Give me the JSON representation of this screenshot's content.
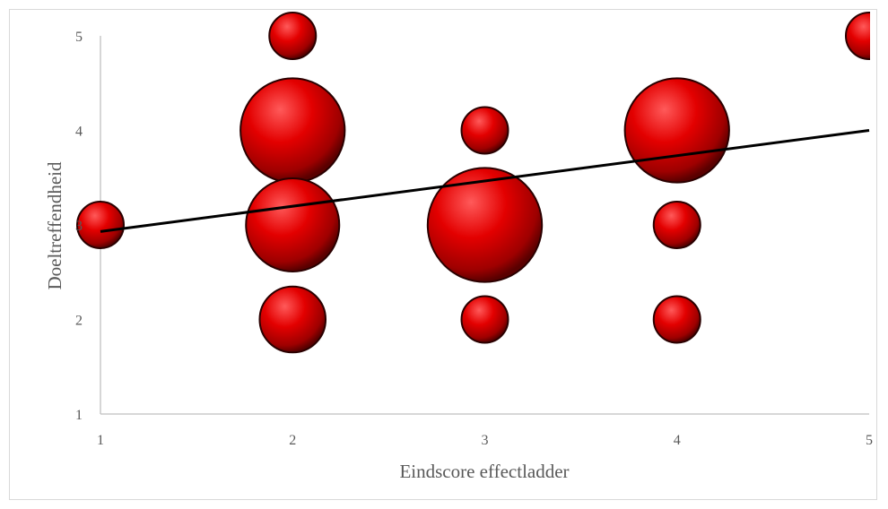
{
  "chart_data": {
    "type": "bubble",
    "xlabel": "Eindscore effectladder",
    "ylabel": "Doeltreffendheid",
    "xlim": [
      1,
      5
    ],
    "ylim": [
      1,
      5
    ],
    "x_ticks": [
      "1",
      "2",
      "3",
      "4",
      "5"
    ],
    "y_ticks": [
      "1",
      "2",
      "3",
      "4",
      "5"
    ],
    "grid": false,
    "legend": "none",
    "bubble_color": "#e00000",
    "points": [
      {
        "x": 1,
        "y": 3,
        "size": 1
      },
      {
        "x": 2,
        "y": 2,
        "size": 2
      },
      {
        "x": 2,
        "y": 3,
        "size": 4
      },
      {
        "x": 2,
        "y": 4,
        "size": 5
      },
      {
        "x": 2,
        "y": 5,
        "size": 1
      },
      {
        "x": 3,
        "y": 2,
        "size": 1
      },
      {
        "x": 3,
        "y": 3,
        "size": 6
      },
      {
        "x": 3,
        "y": 4,
        "size": 1
      },
      {
        "x": 4,
        "y": 2,
        "size": 1
      },
      {
        "x": 4,
        "y": 3,
        "size": 1
      },
      {
        "x": 4,
        "y": 4,
        "size": 5
      },
      {
        "x": 5,
        "y": 5,
        "size": 1
      }
    ],
    "trendline": {
      "type": "linear",
      "y_at_xmin": 2.93,
      "y_at_xmax": 4.0,
      "color": "#000000"
    }
  }
}
